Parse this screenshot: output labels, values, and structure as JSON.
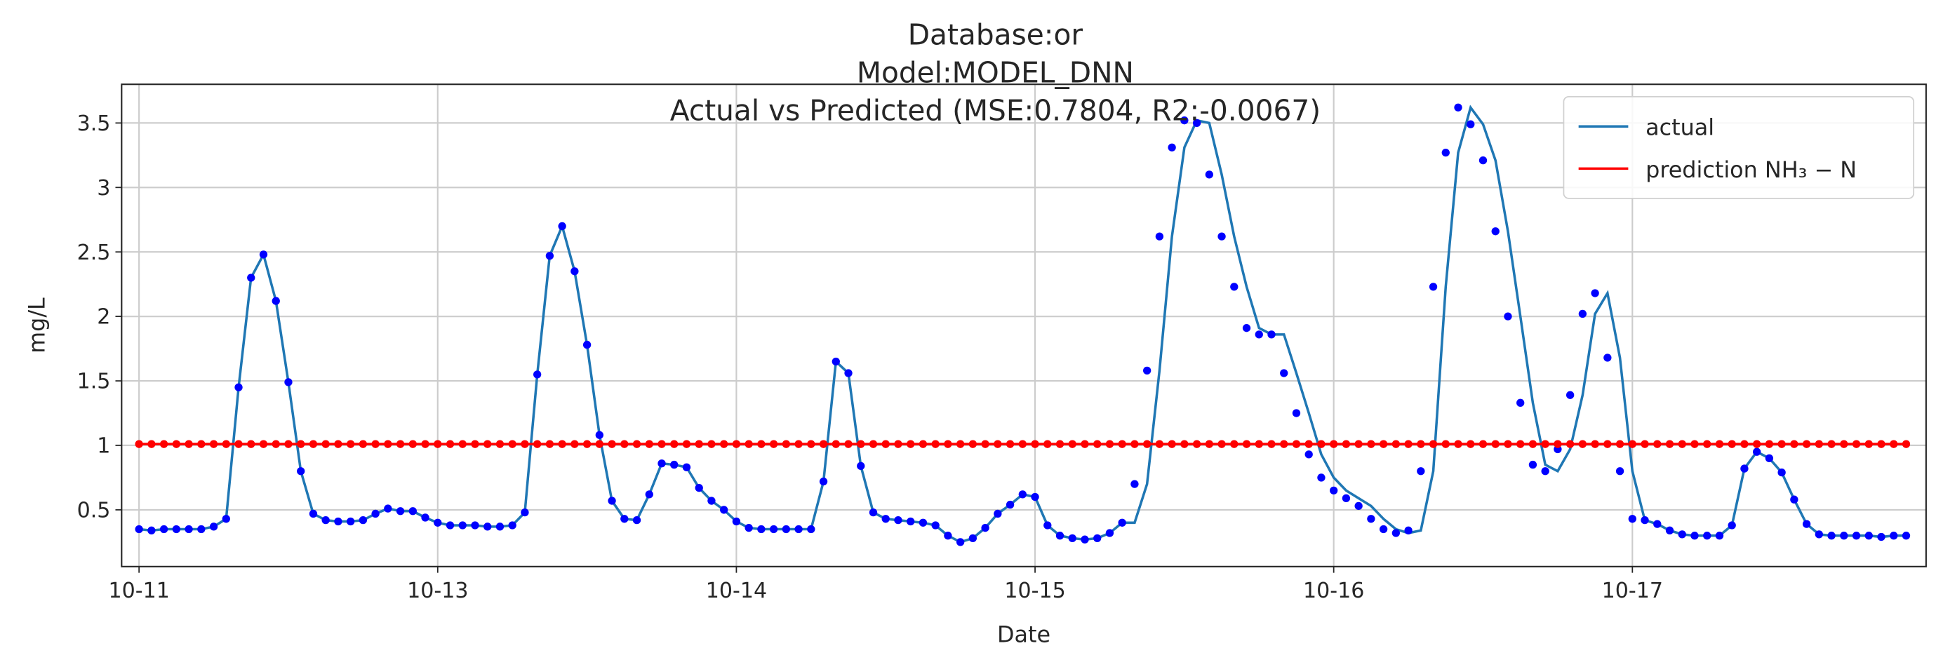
{
  "chart_data": {
    "type": "line",
    "title_lines": [
      "Database:or",
      "Model:MODEL_DNN",
      "Actual vs Predicted (MSE:0.7804, R2:-0.0067)"
    ],
    "x_label": "Date",
    "y_label": "mg/L",
    "xlim": [
      -1.4,
      143.6
    ],
    "ylim": [
      0.06,
      3.8
    ],
    "xticks": [
      {
        "value": 0,
        "label": "10-11"
      },
      {
        "value": 24,
        "label": "10-13"
      },
      {
        "value": 48,
        "label": "10-14"
      },
      {
        "value": 72,
        "label": "10-15"
      },
      {
        "value": 96,
        "label": "10-16"
      },
      {
        "value": 120,
        "label": "10-17"
      }
    ],
    "yticks": [
      0.5,
      1.0,
      1.5,
      2.0,
      2.5,
      3.0,
      3.5
    ],
    "grid": true,
    "legend": "upper right",
    "series": [
      {
        "name": "actual",
        "color": "#1f77b4",
        "style": "line",
        "values": [
          0.35,
          0.34,
          0.35,
          0.35,
          0.35,
          0.35,
          0.37,
          0.43,
          1.45,
          2.3,
          2.48,
          2.12,
          1.49,
          0.8,
          0.47,
          0.42,
          0.41,
          0.41,
          0.42,
          0.47,
          0.51,
          0.49,
          0.49,
          0.44,
          0.4,
          0.38,
          0.38,
          0.38,
          0.37,
          0.37,
          0.38,
          0.48,
          1.55,
          2.47,
          2.7,
          2.35,
          1.78,
          1.08,
          0.57,
          0.43,
          0.42,
          0.62,
          0.86,
          0.85,
          0.83,
          0.67,
          0.57,
          0.5,
          0.41,
          0.36,
          0.35,
          0.35,
          0.35,
          0.35,
          0.35,
          0.72,
          1.65,
          1.56,
          0.84,
          0.48,
          0.43,
          0.42,
          0.41,
          0.4,
          0.38,
          0.3,
          0.25,
          0.28,
          0.36,
          0.47,
          0.54,
          0.62,
          0.6,
          0.38,
          0.3,
          0.28,
          0.27,
          0.28,
          0.32,
          0.4,
          0.4,
          0.7,
          1.58,
          2.62,
          3.31,
          3.52,
          3.5,
          3.1,
          2.62,
          2.23,
          1.91,
          1.86,
          1.86,
          1.56,
          1.25,
          0.93,
          0.75,
          0.65,
          0.59,
          0.53,
          0.43,
          0.35,
          0.32,
          0.34,
          0.8,
          2.23,
          3.27,
          3.62,
          3.49,
          3.21,
          2.66,
          2.0,
          1.33,
          0.85,
          0.8,
          0.97,
          1.39,
          2.02,
          2.18,
          1.68,
          0.8,
          0.42,
          0.39,
          0.34,
          0.31,
          0.3,
          0.3,
          0.3,
          0.38,
          0.82,
          0.95,
          0.9,
          0.79,
          0.58,
          0.39,
          0.31,
          0.3,
          0.3,
          0.3,
          0.3,
          0.29,
          0.3,
          0.3
        ]
      },
      {
        "color": "#0000ff",
        "style": "dots",
        "values": [
          0.35,
          0.34,
          0.35,
          0.35,
          0.35,
          0.35,
          0.37,
          0.43,
          1.45,
          2.3,
          2.48,
          2.12,
          1.49,
          0.8,
          0.47,
          0.42,
          0.41,
          0.41,
          0.42,
          0.47,
          0.51,
          0.49,
          0.49,
          0.44,
          0.4,
          0.38,
          0.38,
          0.38,
          0.37,
          0.37,
          0.38,
          0.48,
          1.55,
          2.47,
          2.7,
          2.35,
          1.78,
          1.08,
          0.57,
          0.43,
          0.42,
          0.62,
          0.86,
          0.85,
          0.83,
          0.67,
          0.57,
          0.5,
          0.41,
          0.36,
          0.35,
          0.35,
          0.35,
          0.35,
          0.35,
          0.72,
          1.65,
          1.56,
          0.84,
          0.48,
          0.43,
          0.42,
          0.41,
          0.4,
          0.38,
          0.3,
          0.25,
          0.28,
          0.36,
          0.47,
          0.54,
          0.62,
          0.6,
          0.38,
          0.3,
          0.28,
          0.27,
          0.28,
          0.32,
          0.4,
          0.7,
          1.58,
          2.62,
          3.31,
          3.52,
          3.5,
          3.1,
          2.62,
          2.23,
          1.91,
          1.86,
          1.86,
          1.56,
          1.25,
          0.93,
          0.75,
          0.65,
          0.59,
          0.53,
          0.43,
          0.35,
          0.32,
          0.34,
          0.8,
          2.23,
          3.27,
          3.62,
          3.49,
          3.21,
          2.66,
          2.0,
          1.33,
          0.85,
          0.8,
          0.97,
          1.39,
          2.02,
          2.18,
          1.68,
          0.8,
          0.43,
          0.42,
          0.39,
          0.34,
          0.31,
          0.3,
          0.3,
          0.3,
          0.38,
          0.82,
          0.95,
          0.9,
          0.79,
          0.58,
          0.39,
          0.31,
          0.3,
          0.3,
          0.3,
          0.3,
          0.29,
          0.3,
          0.3
        ]
      },
      {
        "name": "prediction NH₃ − N",
        "color": "#ff0000",
        "style": "line+dots",
        "values": [
          1.01,
          1.01,
          1.01,
          1.01,
          1.01,
          1.01,
          1.01,
          1.01,
          1.01,
          1.01,
          1.01,
          1.01,
          1.01,
          1.01,
          1.01,
          1.01,
          1.01,
          1.01,
          1.01,
          1.01,
          1.01,
          1.01,
          1.01,
          1.01,
          1.01,
          1.01,
          1.01,
          1.01,
          1.01,
          1.01,
          1.01,
          1.01,
          1.01,
          1.01,
          1.01,
          1.01,
          1.01,
          1.01,
          1.01,
          1.01,
          1.01,
          1.01,
          1.01,
          1.01,
          1.01,
          1.01,
          1.01,
          1.01,
          1.01,
          1.01,
          1.01,
          1.01,
          1.01,
          1.01,
          1.01,
          1.01,
          1.01,
          1.01,
          1.01,
          1.01,
          1.01,
          1.01,
          1.01,
          1.01,
          1.01,
          1.01,
          1.01,
          1.01,
          1.01,
          1.01,
          1.01,
          1.01,
          1.01,
          1.01,
          1.01,
          1.01,
          1.01,
          1.01,
          1.01,
          1.01,
          1.01,
          1.01,
          1.01,
          1.01,
          1.01,
          1.01,
          1.01,
          1.01,
          1.01,
          1.01,
          1.01,
          1.01,
          1.01,
          1.01,
          1.01,
          1.01,
          1.01,
          1.01,
          1.01,
          1.01,
          1.01,
          1.01,
          1.01,
          1.01,
          1.01,
          1.01,
          1.01,
          1.01,
          1.01,
          1.01,
          1.01,
          1.01,
          1.01,
          1.01,
          1.01,
          1.01,
          1.01,
          1.01,
          1.01,
          1.01,
          1.01,
          1.01,
          1.01,
          1.01,
          1.01,
          1.01,
          1.01,
          1.01,
          1.01,
          1.01,
          1.01,
          1.01,
          1.01,
          1.01,
          1.01,
          1.01,
          1.01,
          1.01,
          1.01,
          1.01,
          1.01,
          1.01,
          1.01
        ]
      }
    ]
  }
}
